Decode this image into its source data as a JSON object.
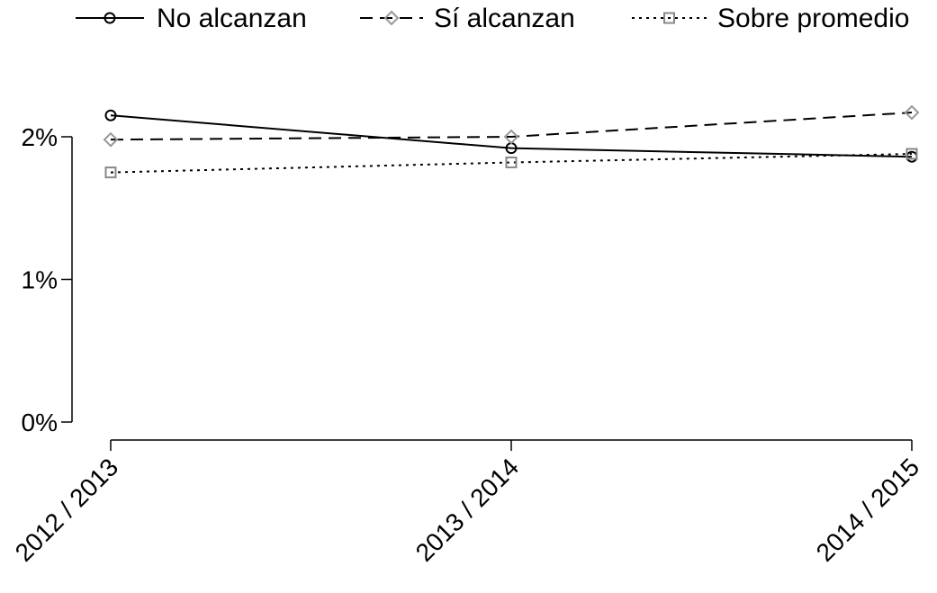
{
  "chart_data": {
    "type": "line",
    "title": "",
    "xlabel": "",
    "ylabel": "",
    "categories": [
      "2012 / 2013",
      "2013 / 2014",
      "2014 / 2015"
    ],
    "y_ticks": [
      0,
      1,
      2
    ],
    "y_tick_labels": [
      "0%",
      "1%",
      "2%"
    ],
    "ylim": [
      0,
      2.2
    ],
    "y_unit": "%",
    "grid": false,
    "legend_position": "top",
    "series": [
      {
        "name": "No alcanzan",
        "values": [
          2.15,
          1.92,
          1.86
        ],
        "color": "#000000",
        "dash": "solid",
        "marker": "circle"
      },
      {
        "name": "Sí alcanzan",
        "values": [
          1.98,
          2.0,
          2.17
        ],
        "color": "#000000",
        "marker_color": "#999999",
        "dash": "dashed",
        "marker": "diamond"
      },
      {
        "name": "Sobre promedio",
        "values": [
          1.75,
          1.82,
          1.88
        ],
        "color": "#000000",
        "marker_color": "#888888",
        "dash": "dotted",
        "marker": "square"
      }
    ]
  }
}
